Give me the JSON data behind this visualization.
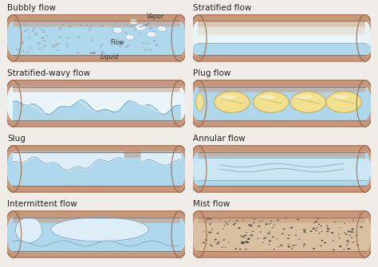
{
  "background": "#f0ede8",
  "pipe_outer": "#c8967a",
  "pipe_edge": "#a07050",
  "pipe_inner_top": "#e8c8a8",
  "liquid_color": "#b0d8ec",
  "liquid_dark": "#88b8d0",
  "vapor_color": "#ddeef8",
  "vapor_top": "#e8f4f8",
  "bubble_dark": "#556677",
  "plug_fill": "#f0e090",
  "plug_edge": "#c0a040",
  "mist_color": "#d8c0a0",
  "mist_dark": "#c0a880",
  "panels": [
    {
      "label": "Bubbly flow",
      "row": 0,
      "col": 0
    },
    {
      "label": "Stratified flow",
      "row": 0,
      "col": 1
    },
    {
      "label": "Stratified-wavy flow",
      "row": 1,
      "col": 0
    },
    {
      "label": "Plug flow",
      "row": 1,
      "col": 1
    },
    {
      "label": "Slug",
      "row": 2,
      "col": 0
    },
    {
      "label": "Annular flow",
      "row": 2,
      "col": 1
    },
    {
      "label": "Intermittent flow",
      "row": 3,
      "col": 0
    },
    {
      "label": "Mist flow",
      "row": 3,
      "col": 1
    }
  ],
  "label_fontsize": 7.5,
  "annot_fontsize": 5.5
}
